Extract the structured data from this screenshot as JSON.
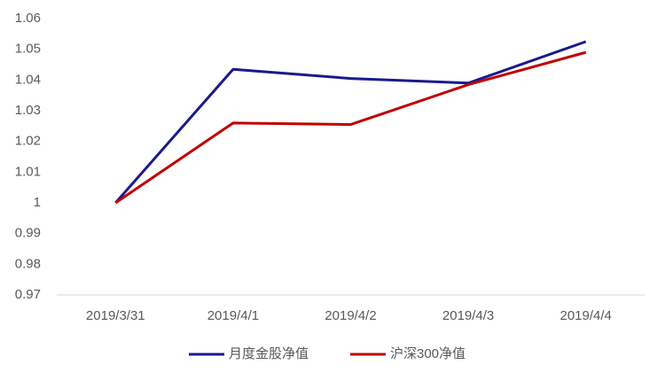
{
  "chart_data": {
    "type": "line",
    "categories": [
      "2019/3/31",
      "2019/4/1",
      "2019/4/2",
      "2019/4/3",
      "2019/4/4"
    ],
    "series": [
      {
        "name": "月度金股净值",
        "color": "#1a1a8c",
        "values": [
          1,
          1.0435,
          1.0405,
          1.039,
          1.0525
        ]
      },
      {
        "name": "沪深300净值",
        "color": "#c00000",
        "values": [
          1,
          1.026,
          1.0255,
          1.0385,
          1.049
        ]
      }
    ],
    "ylim": [
      0.97,
      1.06
    ],
    "yticks": [
      0.97,
      0.98,
      0.99,
      1,
      1.01,
      1.02,
      1.03,
      1.04,
      1.05,
      1.06
    ],
    "grid": false,
    "legend": "bottom"
  }
}
